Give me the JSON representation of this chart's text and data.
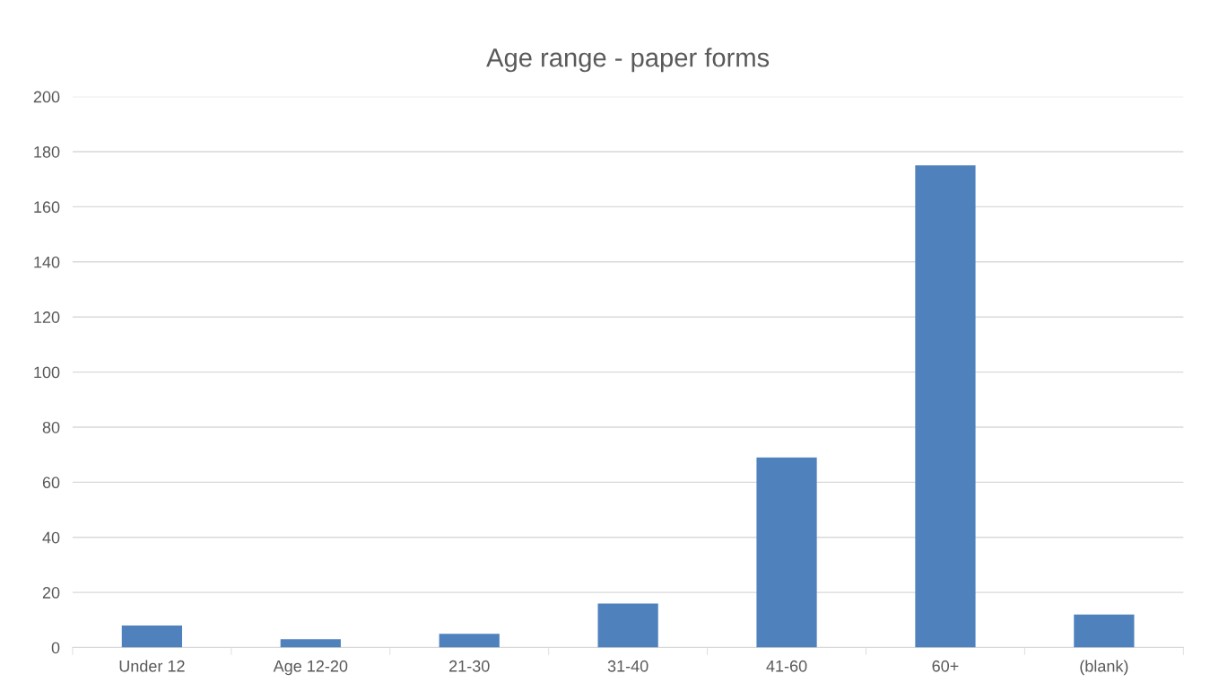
{
  "chart_data": {
    "type": "bar",
    "title": "Age range - paper forms",
    "categories": [
      "Under 12",
      "Age 12-20",
      "21-30",
      "31-40",
      "41-60",
      "60+",
      "(blank)"
    ],
    "values": [
      8,
      3,
      5,
      16,
      69,
      175,
      12
    ],
    "color": "#4f81bd",
    "ylim": [
      0,
      200
    ],
    "yticks": [
      0,
      20,
      40,
      60,
      80,
      100,
      120,
      140,
      160,
      180,
      200
    ],
    "grid": "y"
  }
}
